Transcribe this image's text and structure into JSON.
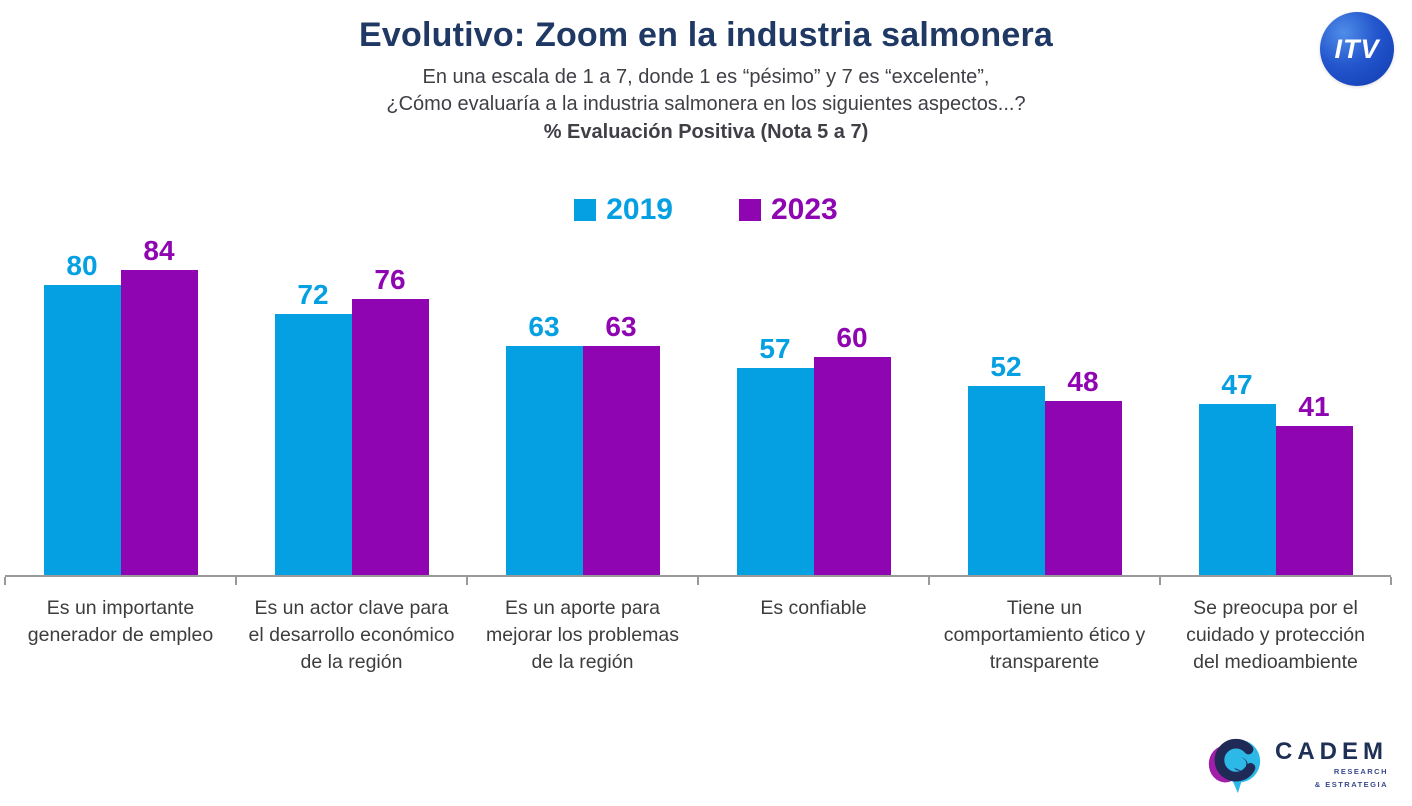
{
  "header": {
    "title": "Evolutivo: Zoom en la industria salmonera",
    "subtitle_line1": "En una escala de 1 a 7, donde 1 es “pésimo” y 7 es “excelente”,",
    "subtitle_line2": "¿Cómo evaluaría a la industria salmonera en los siguientes aspectos...?",
    "note": "% Evaluación Positiva (Nota 5 a 7)"
  },
  "logos": {
    "itv": {
      "label": "ITV"
    },
    "cadem": {
      "name": "CADEM",
      "sub_line1": "RESEARCH",
      "sub_line2": "& ESTRATEGIA"
    }
  },
  "chart_data": {
    "type": "bar",
    "title": "Evolutivo: Zoom en la industria salmonera",
    "subtitle": "% Evaluación Positiva (Nota 5 a 7)",
    "categories": [
      "Es un importante generador de empleo",
      "Es un actor clave para el desarrollo económico de la región",
      "Es un aporte para mejorar los problemas de la región",
      "Es confiable",
      "Tiene un comportamiento ético y transparente",
      "Se preocupa por el cuidado y protección del medioambiente"
    ],
    "series": [
      {
        "name": "2019",
        "color": "#05a0e2",
        "values": [
          80,
          72,
          63,
          57,
          52,
          47
        ]
      },
      {
        "name": "2023",
        "color": "#8f05b2",
        "values": [
          84,
          76,
          63,
          60,
          48,
          41
        ]
      }
    ],
    "ylim": [
      0,
      100
    ],
    "value_labels": true,
    "legend_position": "top",
    "grid": false,
    "axis_color": "#9a9a9a"
  }
}
